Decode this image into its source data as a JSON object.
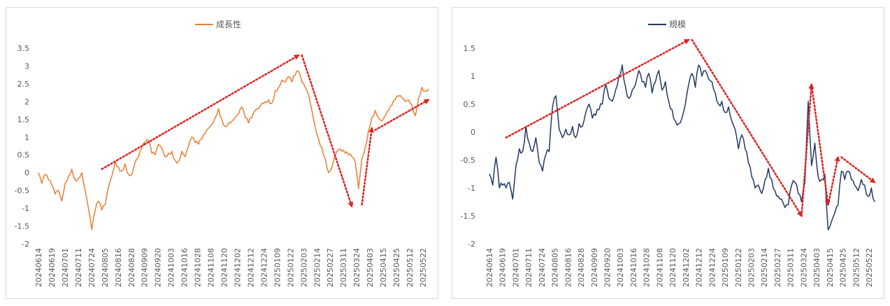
{
  "chart_data": [
    {
      "type": "line",
      "legend_position": "top-center",
      "grid": false,
      "color": "#ed7d31",
      "arrow_color": "#e02020",
      "ylim": [
        -2,
        3.5
      ],
      "ytick_labels": [
        "3.5",
        "3",
        "2.5",
        "2",
        "1.5",
        "1",
        "0.5",
        "0",
        "-0.5",
        "-1",
        "-1.5",
        "-2"
      ],
      "ytick_values": [
        3.5,
        3,
        2.5,
        2,
        1.5,
        1,
        0.5,
        0,
        -0.5,
        -1,
        -1.5,
        -2
      ],
      "xtick_labels": [
        "20240614",
        "20240619",
        "20240701",
        "20240711",
        "20240724",
        "20240805",
        "20240816",
        "20240828",
        "20240909",
        "20240920",
        "20241003",
        "20241016",
        "20241028",
        "20241108",
        "20241120",
        "20241202",
        "20241212",
        "20241224",
        "20250109",
        "20250122",
        "20250203",
        "20250214",
        "20250227",
        "20250311",
        "20250324",
        "20250403",
        "20250415",
        "20250425",
        "20250512",
        "20250522"
      ],
      "series": [
        {
          "name": "成長性",
          "keypoints": [
            [
              0,
              0
            ],
            [
              1,
              -0.3
            ],
            [
              2,
              -0.05
            ],
            [
              3,
              -0.2
            ],
            [
              4,
              -0.35
            ],
            [
              5,
              -0.6
            ],
            [
              6,
              -0.5
            ],
            [
              7,
              -0.8
            ],
            [
              8,
              -0.3
            ],
            [
              9,
              -0.1
            ],
            [
              10,
              0.1
            ],
            [
              11,
              -0.2
            ],
            [
              12,
              -0.15
            ],
            [
              13,
              0.0
            ],
            [
              14,
              -0.5
            ],
            [
              15,
              -1.0
            ],
            [
              16,
              -1.6
            ],
            [
              17,
              -1.05
            ],
            [
              18,
              -0.8
            ],
            [
              19,
              -1.05
            ],
            [
              20,
              -0.9
            ],
            [
              21,
              -0.4
            ],
            [
              22,
              -0.1
            ],
            [
              23,
              0.3
            ],
            [
              24,
              0.15
            ],
            [
              25,
              0.05
            ],
            [
              26,
              0.25
            ],
            [
              27,
              -0.05
            ],
            [
              28,
              -0.05
            ],
            [
              29,
              0.3
            ],
            [
              30,
              0.45
            ],
            [
              31,
              0.7
            ],
            [
              32,
              0.85
            ],
            [
              33,
              0.9
            ],
            [
              34,
              0.55
            ],
            [
              35,
              0.5
            ],
            [
              36,
              0.8
            ],
            [
              37,
              0.7
            ],
            [
              38,
              0.45
            ],
            [
              39,
              0.55
            ],
            [
              40,
              0.6
            ],
            [
              41,
              0.35
            ],
            [
              42,
              0.3
            ],
            [
              43,
              0.6
            ],
            [
              44,
              0.45
            ],
            [
              45,
              0.75
            ],
            [
              46,
              1.0
            ],
            [
              47,
              0.85
            ],
            [
              48,
              0.8
            ],
            [
              49,
              0.95
            ],
            [
              50,
              1.1
            ],
            [
              51,
              1.25
            ],
            [
              52,
              1.35
            ],
            [
              53,
              1.55
            ],
            [
              54,
              1.8
            ],
            [
              55,
              1.5
            ],
            [
              56,
              1.3
            ],
            [
              57,
              1.4
            ],
            [
              58,
              1.45
            ],
            [
              59,
              1.55
            ],
            [
              60,
              1.65
            ],
            [
              61,
              1.85
            ],
            [
              62,
              1.55
            ],
            [
              63,
              1.4
            ],
            [
              64,
              1.55
            ],
            [
              65,
              1.75
            ],
            [
              66,
              1.8
            ],
            [
              67,
              1.95
            ],
            [
              68,
              2.0
            ],
            [
              69,
              2.05
            ],
            [
              70,
              1.95
            ],
            [
              71,
              2.3
            ],
            [
              72,
              2.4
            ],
            [
              73,
              2.6
            ],
            [
              74,
              2.55
            ],
            [
              75,
              2.7
            ],
            [
              76,
              2.55
            ],
            [
              77,
              2.75
            ],
            [
              78,
              2.85
            ],
            [
              79,
              2.55
            ],
            [
              80,
              2.4
            ],
            [
              81,
              2.2
            ],
            [
              82,
              1.75
            ],
            [
              83,
              1.3
            ],
            [
              84,
              0.95
            ],
            [
              85,
              0.7
            ],
            [
              86,
              0.4
            ],
            [
              87,
              0.0
            ],
            [
              88,
              0.15
            ],
            [
              89,
              0.5
            ],
            [
              90,
              0.65
            ],
            [
              91,
              0.6
            ],
            [
              92,
              0.55
            ],
            [
              93,
              0.5
            ],
            [
              94,
              0.45
            ],
            [
              95,
              0.3
            ],
            [
              96,
              -0.45
            ],
            [
              97,
              0.4
            ],
            [
              98,
              0.7
            ],
            [
              99,
              1.2
            ],
            [
              100,
              1.55
            ],
            [
              101,
              1.75
            ],
            [
              102,
              1.55
            ],
            [
              103,
              1.45
            ],
            [
              104,
              1.6
            ],
            [
              105,
              1.75
            ],
            [
              106,
              1.9
            ],
            [
              107,
              2.05
            ],
            [
              108,
              2.15
            ],
            [
              109,
              2.1
            ],
            [
              110,
              2.0
            ],
            [
              111,
              2.05
            ],
            [
              112,
              1.9
            ],
            [
              113,
              1.6
            ],
            [
              114,
              2.1
            ],
            [
              115,
              2.4
            ],
            [
              116,
              2.3
            ],
            [
              117,
              2.35
            ]
          ]
        }
      ],
      "trend_arrows": [
        {
          "from": [
            19,
            0.1
          ],
          "to": [
            78,
            3.3
          ]
        },
        {
          "from": [
            79,
            3.3
          ],
          "to": [
            94,
            -0.95
          ]
        },
        {
          "from": [
            97,
            -0.9
          ],
          "to": [
            100,
            1.25
          ]
        },
        {
          "from": [
            101,
            1.2
          ],
          "to": [
            117,
            2.05
          ]
        }
      ]
    },
    {
      "type": "line",
      "legend_position": "top-center",
      "grid": false,
      "color": "#203864",
      "arrow_color": "#e02020",
      "ylim": [
        -2,
        1.5
      ],
      "ytick_labels": [
        "1.5",
        "1",
        "0.5",
        "0",
        "-0.5",
        "-1",
        "-1.5",
        "-2"
      ],
      "ytick_values": [
        1.5,
        1,
        0.5,
        0,
        -0.5,
        -1,
        -1.5,
        -2
      ],
      "xtick_labels": [
        "20240614",
        "20240619",
        "20240701",
        "20240711",
        "20240724",
        "20240805",
        "20240816",
        "20240828",
        "20240909",
        "20240920",
        "20241003",
        "20241016",
        "20241028",
        "20241108",
        "20241120",
        "20241202",
        "20241212",
        "20241224",
        "20250109",
        "20250122",
        "20250203",
        "20250214",
        "20250227",
        "20250311",
        "20250324",
        "20250403",
        "20250415",
        "20250425",
        "20250512",
        "20250522"
      ],
      "series": [
        {
          "name": "規模",
          "keypoints": [
            [
              0,
              -0.75
            ],
            [
              1,
              -0.95
            ],
            [
              2,
              -0.45
            ],
            [
              3,
              -1.0
            ],
            [
              4,
              -0.95
            ],
            [
              5,
              -1.0
            ],
            [
              6,
              -0.9
            ],
            [
              7,
              -1.2
            ],
            [
              8,
              -0.6
            ],
            [
              9,
              -0.3
            ],
            [
              10,
              -0.35
            ],
            [
              11,
              0.1
            ],
            [
              12,
              -0.2
            ],
            [
              13,
              -0.35
            ],
            [
              14,
              -0.1
            ],
            [
              15,
              -0.55
            ],
            [
              16,
              -0.7
            ],
            [
              17,
              -0.4
            ],
            [
              18,
              -0.35
            ],
            [
              19,
              0.45
            ],
            [
              20,
              0.65
            ],
            [
              21,
              0.05
            ],
            [
              22,
              -0.1
            ],
            [
              23,
              0.05
            ],
            [
              24,
              -0.05
            ],
            [
              25,
              0.1
            ],
            [
              26,
              -0.1
            ],
            [
              27,
              0.15
            ],
            [
              28,
              0.1
            ],
            [
              29,
              0.35
            ],
            [
              30,
              0.5
            ],
            [
              31,
              0.25
            ],
            [
              32,
              0.3
            ],
            [
              33,
              0.4
            ],
            [
              34,
              0.5
            ],
            [
              35,
              0.85
            ],
            [
              36,
              0.6
            ],
            [
              37,
              0.55
            ],
            [
              38,
              0.75
            ],
            [
              39,
              1.0
            ],
            [
              40,
              1.2
            ],
            [
              41,
              0.8
            ],
            [
              42,
              0.6
            ],
            [
              43,
              0.75
            ],
            [
              44,
              0.85
            ],
            [
              45,
              1.1
            ],
            [
              46,
              0.9
            ],
            [
              47,
              0.8
            ],
            [
              48,
              1.05
            ],
            [
              49,
              0.7
            ],
            [
              50,
              0.9
            ],
            [
              51,
              1.1
            ],
            [
              52,
              0.75
            ],
            [
              53,
              0.9
            ],
            [
              54,
              0.55
            ],
            [
              55,
              0.4
            ],
            [
              56,
              0.2
            ],
            [
              57,
              0.15
            ],
            [
              58,
              0.25
            ],
            [
              59,
              0.5
            ],
            [
              60,
              0.85
            ],
            [
              61,
              1.05
            ],
            [
              62,
              0.8
            ],
            [
              63,
              1.2
            ],
            [
              64,
              1.0
            ],
            [
              65,
              1.1
            ],
            [
              66,
              0.95
            ],
            [
              67,
              0.9
            ],
            [
              68,
              0.7
            ],
            [
              69,
              0.5
            ],
            [
              70,
              0.55
            ],
            [
              71,
              0.35
            ],
            [
              72,
              0.45
            ],
            [
              73,
              0.2
            ],
            [
              74,
              0.05
            ],
            [
              75,
              -0.3
            ],
            [
              76,
              -0.05
            ],
            [
              77,
              -0.3
            ],
            [
              78,
              -0.55
            ],
            [
              79,
              -0.8
            ],
            [
              80,
              -1.0
            ],
            [
              81,
              -0.95
            ],
            [
              82,
              -1.1
            ],
            [
              83,
              -0.85
            ],
            [
              84,
              -0.65
            ],
            [
              85,
              -0.85
            ],
            [
              86,
              -1.05
            ],
            [
              87,
              -1.15
            ],
            [
              88,
              -1.2
            ],
            [
              89,
              -1.35
            ],
            [
              90,
              -1.3
            ],
            [
              91,
              -0.95
            ],
            [
              92,
              -0.9
            ],
            [
              93,
              -1.1
            ],
            [
              94,
              -1.25
            ],
            [
              95,
              -0.9
            ],
            [
              96,
              0.55
            ],
            [
              97,
              -0.6
            ],
            [
              98,
              -0.2
            ],
            [
              99,
              -0.8
            ],
            [
              100,
              -0.85
            ],
            [
              101,
              -0.75
            ],
            [
              102,
              -1.75
            ],
            [
              103,
              -1.6
            ],
            [
              104,
              -1.45
            ],
            [
              105,
              -1.3
            ],
            [
              106,
              -0.7
            ],
            [
              107,
              -0.85
            ],
            [
              108,
              -0.7
            ],
            [
              109,
              -0.85
            ],
            [
              110,
              -0.95
            ],
            [
              111,
              -1.05
            ],
            [
              112,
              -0.85
            ],
            [
              113,
              -0.95
            ],
            [
              114,
              -1.15
            ],
            [
              115,
              -1.0
            ],
            [
              116,
              -1.25
            ]
          ]
        }
      ],
      "trend_arrows": [
        {
          "from": [
            5,
            -0.1
          ],
          "to": [
            60,
            1.65
          ]
        },
        {
          "from": [
            61,
            1.65
          ],
          "to": [
            94,
            -1.5
          ]
        },
        {
          "from": [
            94,
            -1.5
          ],
          "to": [
            97,
            0.85
          ]
        },
        {
          "from": [
            97,
            0.85
          ],
          "to": [
            102,
            -1.3
          ]
        },
        {
          "from": [
            102,
            -1.3
          ],
          "to": [
            105,
            -0.45
          ]
        },
        {
          "from": [
            106,
            -0.45
          ],
          "to": [
            116,
            -0.9
          ]
        }
      ]
    }
  ]
}
